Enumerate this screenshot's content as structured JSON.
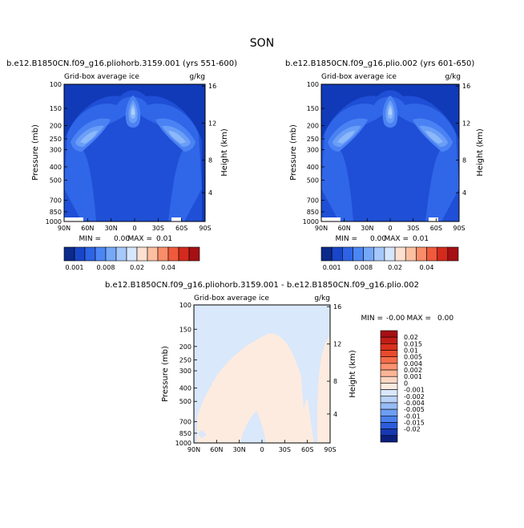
{
  "figure": {
    "season": "SON",
    "variable": "Grid-box average ice",
    "units": "g/kg",
    "ylabel": "Pressure (mb)",
    "y2label": "Height (km)",
    "min_label": "MIN =",
    "max_label": "MAX ="
  },
  "panels": [
    {
      "title": "b.e12.B1850CN.f09_g16.pliohorb.3159.001 (yrs 551-600)",
      "min": "0.00",
      "max": "0.01"
    },
    {
      "title": "b.e12.B1850CN.f09_g16.plio.002 (yrs 601-650)",
      "min": "0.00",
      "max": "0.01"
    },
    {
      "title": "b.e12.B1850CN.f09_g16.pliohorb.3159.001 - b.e12.B1850CN.f09_g16.plio.002",
      "min": "-0.00",
      "max": "0.00"
    }
  ],
  "chart_data": {
    "type": "heatmap",
    "x_ticks": [
      "90N",
      "60N",
      "30N",
      "0",
      "30S",
      "60S",
      "90S"
    ],
    "xlim": [
      90,
      -90
    ],
    "y_ticks": [
      100,
      150,
      200,
      250,
      300,
      400,
      500,
      700,
      850,
      1000
    ],
    "ylim": [
      1000,
      100
    ],
    "height_ticks": [
      16,
      12,
      8,
      4
    ],
    "height_ticks_pressure": [
      103,
      192,
      357,
      617
    ],
    "colorbar_top": {
      "labels": [
        "0.001",
        "0.008",
        "0.02",
        "0.04"
      ],
      "label_slots": [
        0,
        3,
        6,
        9
      ],
      "colors": [
        "#0b2a8a",
        "#1946c8",
        "#2e63e6",
        "#4c86f5",
        "#76a8f8",
        "#a6c8fb",
        "#d6e6fd",
        "#fde0d0",
        "#fcbfa0",
        "#f98d6a",
        "#ef5a3c",
        "#d32a1e",
        "#a41014"
      ]
    },
    "colorbar_diff": {
      "labels": [
        "0.02",
        "0.015",
        "0.01",
        "0.005",
        "0.004",
        "0.002",
        "0.001",
        "0",
        "-0.001",
        "-0.002",
        "-0.004",
        "-0.005",
        "-0.01",
        "-0.015",
        "-0.02"
      ],
      "colors": [
        "#a41014",
        "#c21d16",
        "#d9301c",
        "#ea4a2c",
        "#f56d4a",
        "#fa9270",
        "#fcb597",
        "#fdd6c2",
        "#fdebe0",
        "#d9e8fb",
        "#b9d3f8",
        "#96bcf5",
        "#6d9ef2",
        "#4a80ec",
        "#2c5ddc",
        "#1638b0",
        "#0a1f7c"
      ]
    },
    "ice_field_levels": [
      "#103ab8",
      "#1f4fd6",
      "#3066e8",
      "#4b82f3",
      "#6a9ef7",
      "#8cb8fa",
      "#b1cffc"
    ],
    "ice_field_description": "Deep blue background ≈0.001 g/kg; maxima near 300 mb at equator and ~450–550 mb in mid-latitudes of both hemispheres",
    "diff_field_description": "Near-zero differences: light blue (0 to -0.001) aloft and near 90S, light peach (0 to 0.001) over most of troposphere"
  }
}
